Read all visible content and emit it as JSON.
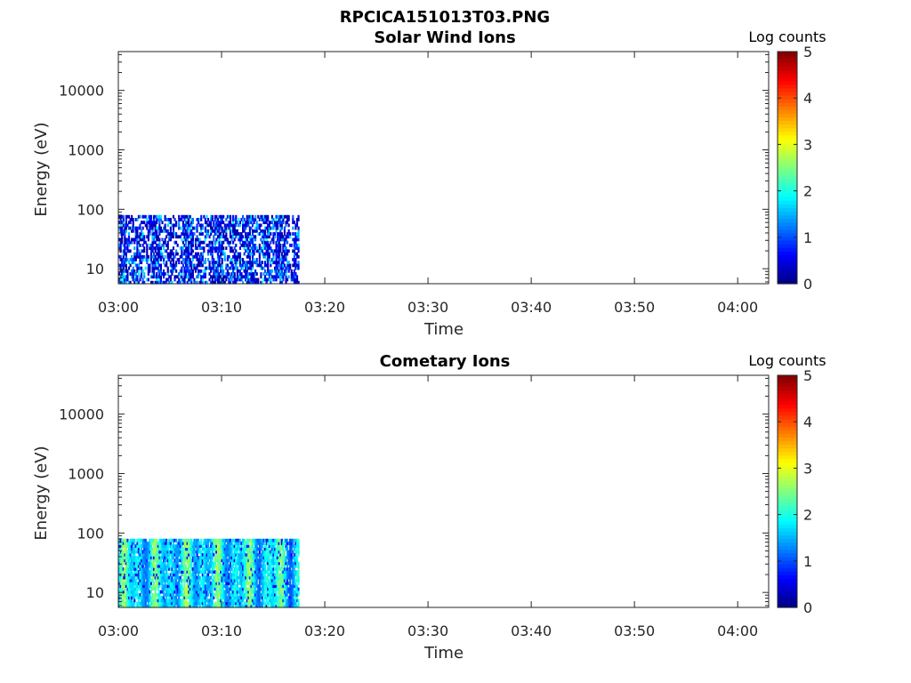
{
  "figure": {
    "title": "RPCICA151013T03.PNG"
  },
  "colors": {
    "axis": "#262626",
    "background": "#ffffff",
    "colormap": "jet"
  },
  "chart_data": [
    {
      "type": "heatmap",
      "title": "Solar Wind Ions",
      "xlabel": "Time",
      "ylabel": "Energy (eV)",
      "x_tick_labels": [
        "03:00",
        "03:10",
        "03:20",
        "03:30",
        "03:40",
        "03:50",
        "04:00"
      ],
      "y_tick_labels": [
        "10",
        "100",
        "1000",
        "10000"
      ],
      "y_scale": "log",
      "xlim": [
        "03:00",
        "04:03"
      ],
      "ylim": [
        5.6,
        45000
      ],
      "colorbar": {
        "label": "Log counts",
        "ticks": [
          "0",
          "1",
          "2",
          "3",
          "4",
          "5"
        ],
        "range": [
          0,
          5
        ],
        "colormap": "jet"
      },
      "data_extent": {
        "time_start": "03:00",
        "time_end": "03:17.5",
        "energy_min": 5.6,
        "energy_max": 80
      },
      "intensity_profile": {
        "typical_log_counts": [
          0.2,
          1.9
        ],
        "dominant": "dark blue with cyan streaks",
        "coverage": "sparse, many empty bins"
      }
    },
    {
      "type": "heatmap",
      "title": "Cometary Ions",
      "xlabel": "Time",
      "ylabel": "Energy (eV)",
      "x_tick_labels": [
        "03:00",
        "03:10",
        "03:20",
        "03:30",
        "03:40",
        "03:50",
        "04:00"
      ],
      "y_tick_labels": [
        "10",
        "100",
        "1000",
        "10000"
      ],
      "y_scale": "log",
      "xlim": [
        "03:00",
        "04:03"
      ],
      "ylim": [
        5.6,
        45000
      ],
      "colorbar": {
        "label": "Log counts",
        "ticks": [
          "0",
          "1",
          "2",
          "3",
          "4",
          "5"
        ],
        "range": [
          0,
          5
        ],
        "colormap": "jet"
      },
      "data_extent": {
        "time_start": "03:00",
        "time_end": "03:17.5",
        "energy_min": 5.6,
        "energy_max": 80
      },
      "intensity_profile": {
        "typical_log_counts": [
          0.5,
          3.0
        ],
        "dominant": "cyan with yellow-green bands",
        "coverage": "dense"
      }
    }
  ]
}
